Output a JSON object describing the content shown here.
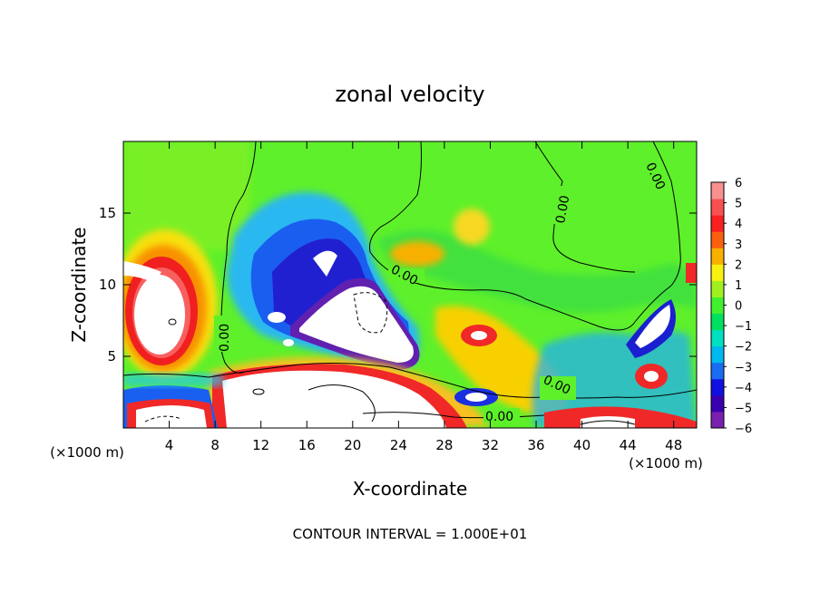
{
  "chart_data": {
    "type": "heatmap",
    "title": "zonal velocity",
    "xlabel": "X-coordinate",
    "ylabel": "Z-coordinate",
    "x_unit": "(×1000 m)",
    "y_unit": "(×1000 m)",
    "xlim": [
      0,
      50
    ],
    "ylim": [
      0,
      20
    ],
    "x_ticks": [
      "4",
      "8",
      "12",
      "16",
      "20",
      "24",
      "28",
      "32",
      "36",
      "40",
      "44",
      "48"
    ],
    "x_tick_values": [
      4,
      8,
      12,
      16,
      20,
      24,
      28,
      32,
      36,
      40,
      44,
      48
    ],
    "y_ticks": [
      "5",
      "10",
      "15"
    ],
    "y_tick_values": [
      5,
      10,
      15
    ],
    "colorbar": {
      "labels": [
        "6",
        "5",
        "4",
        "3",
        "2",
        "1",
        "0",
        "−1",
        "−2",
        "−3",
        "−4",
        "−5",
        "−6"
      ],
      "range": [
        -6,
        6
      ],
      "colors": [
        "#7a1fb0",
        "#3a00b0",
        "#1010e0",
        "#1a6cf0",
        "#00b8f0",
        "#00e0c0",
        "#00e060",
        "#40f030",
        "#a0f020",
        "#f8f010",
        "#f8b000",
        "#f86010",
        "#f82020",
        "#f85050",
        "#f89090"
      ]
    },
    "contour_labels": [
      "0.00",
      "0.00",
      "0.00",
      "0.00",
      "0.00",
      "0.00"
    ],
    "footer": "CONTOUR INTERVAL = 1.000E+01"
  }
}
